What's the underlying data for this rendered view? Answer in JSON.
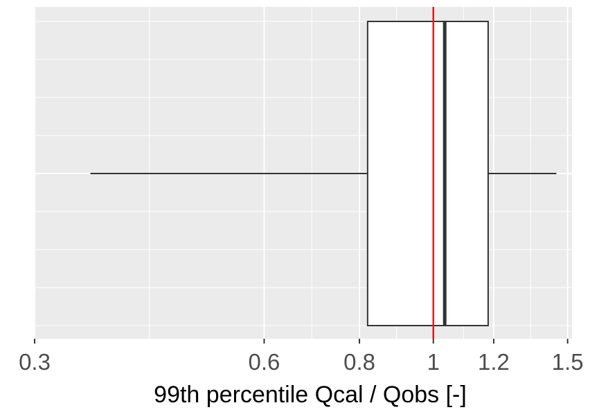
{
  "chart_data": {
    "type": "boxplot",
    "title": "",
    "xlabel": "99th percentile Qcal / Qobs [-]",
    "ylabel": "",
    "x_scale": "log",
    "xlim": [
      0.3,
      1.52
    ],
    "x_ticks": [
      0.3,
      0.6,
      0.8,
      1,
      1.2,
      1.5
    ],
    "x_tick_labels": [
      "0.3",
      "0.6",
      "0.8",
      "1",
      "1.2",
      "1.5"
    ],
    "box": {
      "whisker_low": 0.355,
      "q1": 0.82,
      "median": 1.035,
      "q3": 1.18,
      "whisker_high": 1.45
    },
    "reference_line": {
      "value": 1.0,
      "color": "#e41a1c"
    },
    "grid": true,
    "colors": {
      "panel_background": "#ebebeb",
      "grid": "#ffffff",
      "box_fill": "#ffffff",
      "box_stroke": "#333333",
      "axis_text": "#4d4d4d",
      "axis_title": "#000000"
    }
  }
}
